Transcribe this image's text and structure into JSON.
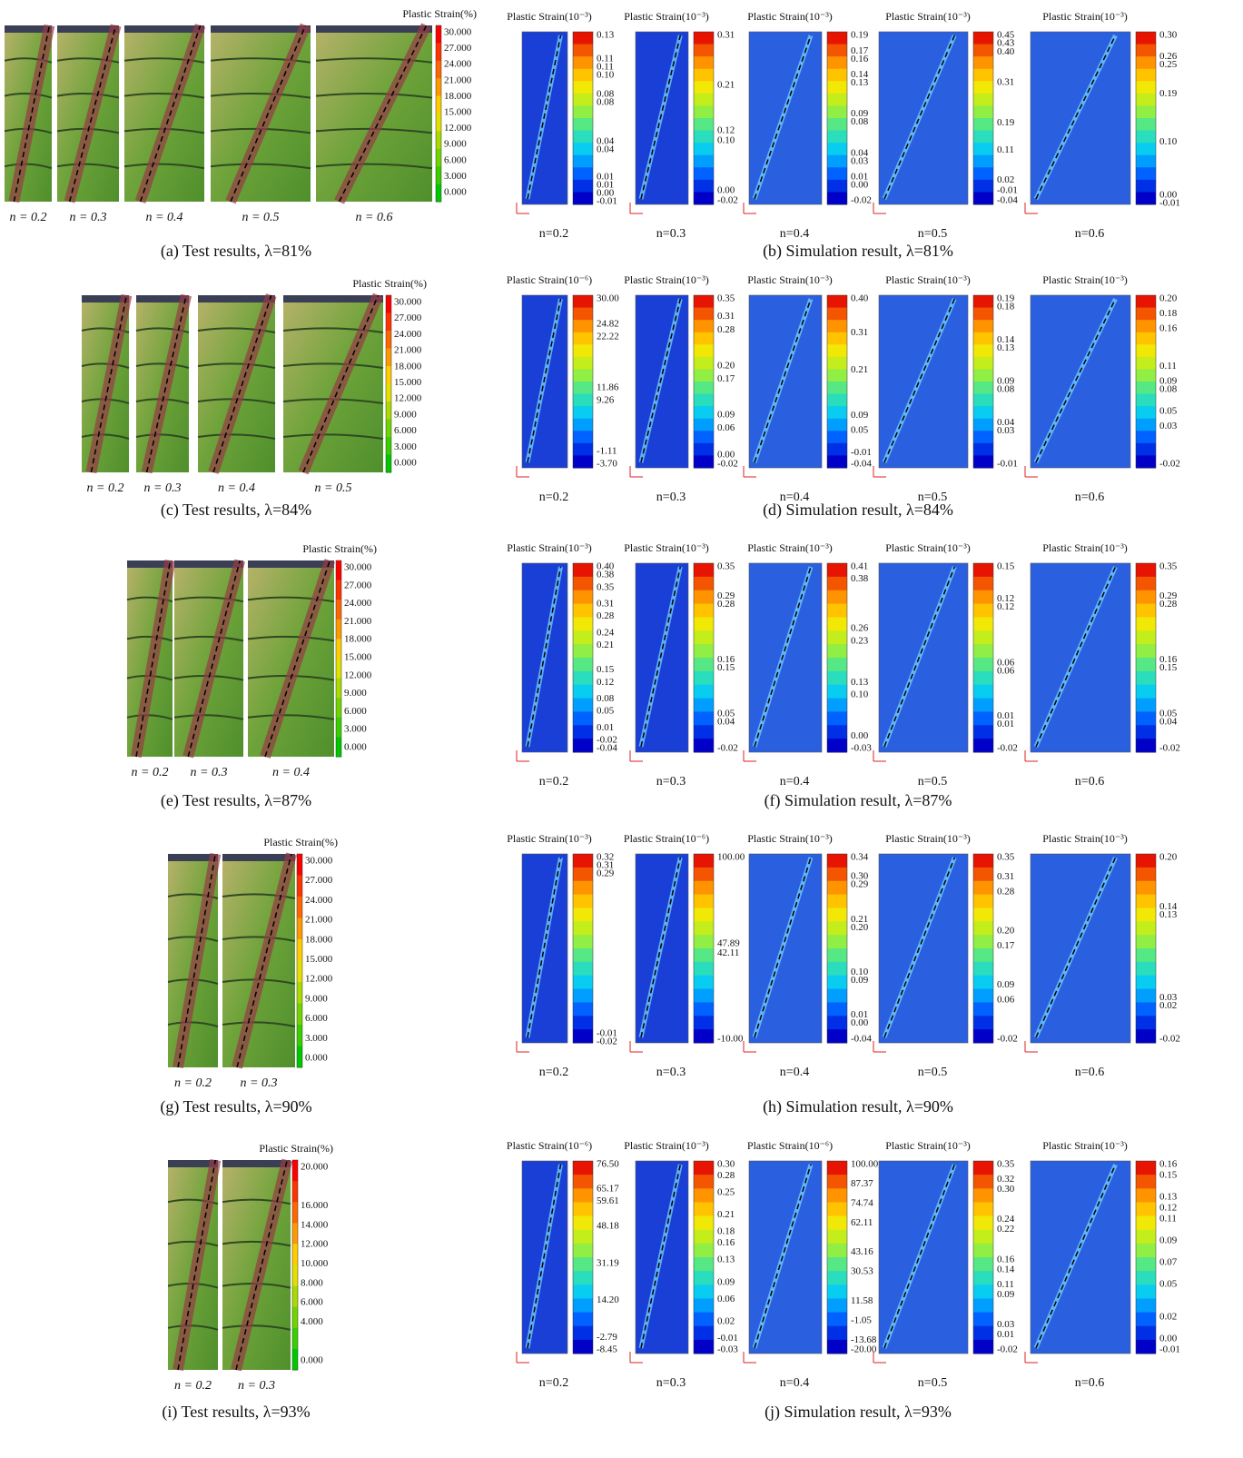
{
  "rows": [
    {
      "test": {
        "title": "Plastic Strain(%)",
        "ticks": [
          "30.000",
          "27.000",
          "24.000",
          "21.000",
          "18.000",
          "15.000",
          "12.000",
          "9.000",
          "6.000",
          "3.000",
          "0.000"
        ],
        "specimens": [
          "n = 0.2",
          "n = 0.3",
          "n = 0.4",
          "n = 0.5",
          "n = 0.6"
        ],
        "caption": "(a) Test results, λ=81%"
      },
      "sim": {
        "caption": "(b) Simulation result, λ=81%",
        "panels": [
          {
            "title": "Plastic Strain(10⁻³)",
            "ticks": [
              "0.13",
              "0.11",
              "0.11",
              "0.10",
              "0.08",
              "0.08",
              "0.04",
              "0.04",
              "0.01",
              "0.01",
              "0.00",
              "-0.01"
            ],
            "label": "n=0.2"
          },
          {
            "title": "Plastic Strain(10⁻³)",
            "ticks": [
              "0.31",
              "0.21",
              "0.12",
              "0.10",
              "0.00",
              "-0.02"
            ],
            "label": "n=0.3"
          },
          {
            "title": "Plastic Strain(10⁻³)",
            "ticks": [
              "0.19",
              "0.17",
              "0.16",
              "0.14",
              "0.13",
              "0.09",
              "0.08",
              "0.04",
              "0.03",
              "0.01",
              "0.00",
              "-0.02"
            ],
            "label": "n=0.4"
          },
          {
            "title": "Plastic Strain(10⁻³)",
            "ticks": [
              "0.45",
              "0.43",
              "0.40",
              "0.31",
              "0.19",
              "0.11",
              "0.02",
              "-0.01",
              "-0.04"
            ],
            "label": "n=0.5"
          },
          {
            "title": "Plastic Strain(10⁻³)",
            "ticks": [
              "0.30",
              "0.26",
              "0.25",
              "0.19",
              "0.10",
              "0.00",
              "-0.01"
            ],
            "label": "n=0.6"
          }
        ]
      }
    },
    {
      "test": {
        "title": "Plastic Strain(%)",
        "ticks": [
          "30.000",
          "27.000",
          "24.000",
          "21.000",
          "18.000",
          "15.000",
          "12.000",
          "9.000",
          "6.000",
          "3.000",
          "0.000"
        ],
        "specimens": [
          "n = 0.2",
          "n = 0.3",
          "n = 0.4",
          "n = 0.5"
        ],
        "caption": "(c) Test results, λ=84%"
      },
      "sim": {
        "caption": "(d) Simulation result, λ=84%",
        "panels": [
          {
            "title": "Plastic Strain(10⁻⁶)",
            "ticks": [
              "30.00",
              "24.82",
              "22.22",
              "11.86",
              "9.26",
              "-1.11",
              "-3.70"
            ],
            "label": "n=0.2"
          },
          {
            "title": "Plastic Strain(10⁻³)",
            "ticks": [
              "0.35",
              "0.31",
              "0.28",
              "0.20",
              "0.17",
              "0.09",
              "0.06",
              "0.00",
              "-0.02"
            ],
            "label": "n=0.3"
          },
          {
            "title": "Plastic Strain(10⁻³)",
            "ticks": [
              "0.40",
              "0.31",
              "0.21",
              "0.09",
              "0.05",
              "-0.01",
              "-0.04"
            ],
            "label": "n=0.4"
          },
          {
            "title": "Plastic Strain(10⁻³)",
            "ticks": [
              "0.19",
              "0.18",
              "0.14",
              "0.13",
              "0.09",
              "0.08",
              "0.04",
              "0.03",
              "-0.01"
            ],
            "label": "n=0.5"
          },
          {
            "title": "Plastic Strain(10⁻³)",
            "ticks": [
              "0.20",
              "0.18",
              "0.16",
              "0.11",
              "0.09",
              "0.08",
              "0.05",
              "0.03",
              "-0.02"
            ],
            "label": "n=0.6"
          }
        ]
      }
    },
    {
      "test": {
        "title": "Plastic Strain(%)",
        "ticks": [
          "30.000",
          "27.000",
          "24.000",
          "21.000",
          "18.000",
          "15.000",
          "12.000",
          "9.000",
          "6.000",
          "3.000",
          "0.000"
        ],
        "specimens": [
          "n = 0.2",
          "n = 0.3",
          "n = 0.4"
        ],
        "caption": "(e) Test results, λ=87%"
      },
      "sim": {
        "caption": "(f) Simulation result, λ=87%",
        "panels": [
          {
            "title": "Plastic Strain(10⁻³)",
            "ticks": [
              "0.40",
              "0.38",
              "0.35",
              "0.31",
              "0.28",
              "0.24",
              "0.21",
              "0.15",
              "0.12",
              "0.08",
              "0.05",
              "0.01",
              "-0.02",
              "-0.04"
            ],
            "label": "n=0.2"
          },
          {
            "title": "Plastic Strain(10⁻³)",
            "ticks": [
              "0.35",
              "0.29",
              "0.28",
              "0.16",
              "0.15",
              "0.05",
              "0.04",
              "-0.02"
            ],
            "label": "n=0.3"
          },
          {
            "title": "Plastic Strain(10⁻³)",
            "ticks": [
              "0.41",
              "0.38",
              "0.26",
              "0.23",
              "0.13",
              "0.10",
              "0.00",
              "-0.03"
            ],
            "label": "n=0.4"
          },
          {
            "title": "Plastic Strain(10⁻³)",
            "ticks": [
              "0.15",
              "0.12",
              "0.12",
              "0.06",
              "0.06",
              "0.01",
              "0.01",
              "-0.02"
            ],
            "label": "n=0.5"
          },
          {
            "title": "Plastic Strain(10⁻³)",
            "ticks": [
              "0.35",
              "0.29",
              "0.28",
              "0.16",
              "0.15",
              "0.05",
              "0.04",
              "-0.02"
            ],
            "label": "n=0.6"
          }
        ]
      }
    },
    {
      "test": {
        "title": "Plastic Strain(%)",
        "ticks": [
          "30.000",
          "27.000",
          "24.000",
          "21.000",
          "18.000",
          "15.000",
          "12.000",
          "9.000",
          "6.000",
          "3.000",
          "0.000"
        ],
        "specimens": [
          "n = 0.2",
          "n = 0.3"
        ],
        "caption": "(g) Test results, λ=90%"
      },
      "sim": {
        "caption": "(h) Simulation result, λ=90%",
        "panels": [
          {
            "title": "Plastic Strain(10⁻³)",
            "ticks": [
              "0.32",
              "0.31",
              "0.29",
              "-0.01",
              "-0.02"
            ],
            "label": "n=0.2"
          },
          {
            "title": "Plastic Strain(10⁻⁶)",
            "ticks": [
              "100.00",
              "47.89",
              "42.11",
              "-10.00"
            ],
            "label": "n=0.3"
          },
          {
            "title": "Plastic Strain(10⁻³)",
            "ticks": [
              "0.34",
              "0.30",
              "0.29",
              "0.21",
              "0.20",
              "0.10",
              "0.09",
              "0.01",
              "0.00",
              "-0.04"
            ],
            "label": "n=0.4"
          },
          {
            "title": "Plastic Strain(10⁻³)",
            "ticks": [
              "0.35",
              "0.31",
              "0.28",
              "0.20",
              "0.17",
              "0.09",
              "0.06",
              "-0.02"
            ],
            "label": "n=0.5"
          },
          {
            "title": "Plastic Strain(10⁻³)",
            "ticks": [
              "0.20",
              "0.14",
              "0.13",
              "0.03",
              "0.02",
              "-0.02"
            ],
            "label": "n=0.6"
          }
        ]
      }
    },
    {
      "test": {
        "title": "Plastic Strain(%)",
        "ticks": [
          "20.000",
          "16.000",
          "14.000",
          "12.000",
          "10.000",
          "8.000",
          "6.000",
          "4.000",
          "0.000"
        ],
        "specimens": [
          "n = 0.2",
          "n = 0.3"
        ],
        "caption": "(i) Test results, λ=93%"
      },
      "sim": {
        "caption": "(j) Simulation result, λ=93%",
        "panels": [
          {
            "title": "Plastic Strain(10⁻⁶)",
            "ticks": [
              "76.50",
              "65.17",
              "59.61",
              "48.18",
              "31.19",
              "14.20",
              "-2.79",
              "-8.45"
            ],
            "label": "n=0.2"
          },
          {
            "title": "Plastic Strain(10⁻³)",
            "ticks": [
              "0.30",
              "0.28",
              "0.25",
              "0.21",
              "0.18",
              "0.16",
              "0.13",
              "0.09",
              "0.06",
              "0.02",
              "-0.01",
              "-0.03"
            ],
            "label": "n=0.3"
          },
          {
            "title": "Plastic Strain(10⁻⁶)",
            "ticks": [
              "100.00",
              "87.37",
              "74.74",
              "62.11",
              "43.16",
              "30.53",
              "11.58",
              "-1.05",
              "-13.68",
              "-20.00"
            ],
            "label": "n=0.4"
          },
          {
            "title": "Plastic Strain(10⁻³)",
            "ticks": [
              "0.35",
              "0.32",
              "0.30",
              "0.24",
              "0.22",
              "0.16",
              "0.14",
              "0.11",
              "0.09",
              "0.03",
              "0.01",
              "-0.02"
            ],
            "label": "n=0.5"
          },
          {
            "title": "Plastic Strain(10⁻³)",
            "ticks": [
              "0.16",
              "0.15",
              "0.13",
              "0.12",
              "0.11",
              "0.09",
              "0.07",
              "0.05",
              "0.02",
              "0.00",
              "-0.01"
            ],
            "label": "n=0.6"
          }
        ]
      }
    }
  ]
}
